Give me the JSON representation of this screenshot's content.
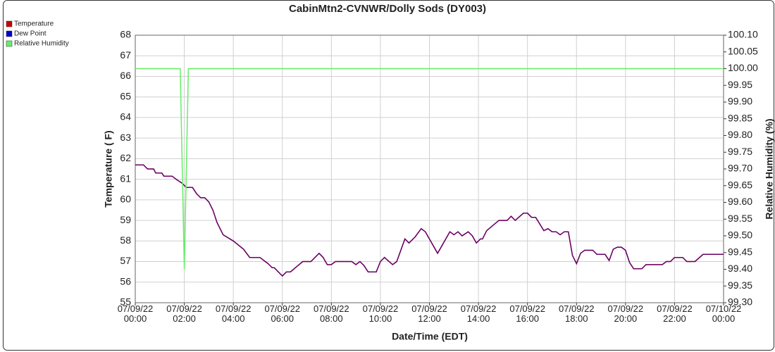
{
  "chart_data": {
    "type": "line",
    "title": "CabinMtn2-CVNWR/Dolly Sods (DY003)",
    "x_label": "Date/Time (EDT)",
    "y_label": "Temperature ( F)",
    "y2_label": "Relative Humidity (%)",
    "grid": true,
    "legend": "top-left",
    "xlim": [
      "2022-07-09T00:00",
      "2022-07-10T00:00"
    ],
    "xticks": [
      {
        "value": "2022-07-09T00:00",
        "label": "07/09/22 00:00"
      },
      {
        "value": "2022-07-09T02:00",
        "label": "07/09/22 02:00"
      },
      {
        "value": "2022-07-09T04:00",
        "label": "07/09/22 04:00"
      },
      {
        "value": "2022-07-09T06:00",
        "label": "07/09/22 06:00"
      },
      {
        "value": "2022-07-09T08:00",
        "label": "07/09/22 08:00"
      },
      {
        "value": "2022-07-09T10:00",
        "label": "07/09/22 10:00"
      },
      {
        "value": "2022-07-09T12:00",
        "label": "07/09/22 12:00"
      },
      {
        "value": "2022-07-09T14:00",
        "label": "07/09/22 14:00"
      },
      {
        "value": "2022-07-09T16:00",
        "label": "07/09/22 16:00"
      },
      {
        "value": "2022-07-09T18:00",
        "label": "07/09/22 18:00"
      },
      {
        "value": "2022-07-09T20:00",
        "label": "07/09/22 20:00"
      },
      {
        "value": "2022-07-09T22:00",
        "label": "07/09/22 22:00"
      },
      {
        "value": "2022-07-10T00:00",
        "label": "07/10/22 00:00"
      }
    ],
    "ylim": [
      55,
      68
    ],
    "yticks": [
      55,
      56,
      57,
      58,
      59,
      60,
      61,
      62,
      63,
      64,
      65,
      66,
      67,
      68
    ],
    "y2lim": [
      99.3,
      100.1
    ],
    "y2ticks": [
      {
        "value": 99.3,
        "label": "99.30"
      },
      99.35,
      {
        "value": 99.4,
        "label": "99.40"
      },
      99.45,
      {
        "value": 99.5,
        "label": "99.50"
      },
      99.55,
      {
        "value": 99.6,
        "label": "99.60"
      },
      99.65,
      {
        "value": 99.7,
        "label": "99.70"
      },
      99.75,
      {
        "value": 99.8,
        "label": "99.80"
      },
      99.85,
      {
        "value": 99.9,
        "label": "99.90"
      },
      99.95,
      {
        "value": 100,
        "label": "100.00"
      },
      100.05,
      {
        "value": 100.1,
        "label": "100.10"
      }
    ],
    "x": [
      "2022-07-09T00:00",
      "2022-07-09T00:20",
      "2022-07-09T00:30",
      "2022-07-09T00:45",
      "2022-07-09T00:50",
      "2022-07-09T01:05",
      "2022-07-09T01:10",
      "2022-07-09T01:30",
      "2022-07-09T01:40",
      "2022-07-09T01:55",
      "2022-07-09T02:05",
      "2022-07-09T02:20",
      "2022-07-09T02:30",
      "2022-07-09T02:40",
      "2022-07-09T02:50",
      "2022-07-09T03:00",
      "2022-07-09T03:10",
      "2022-07-09T03:20",
      "2022-07-09T03:35",
      "2022-07-09T04:00",
      "2022-07-09T04:25",
      "2022-07-09T04:40",
      "2022-07-09T05:05",
      "2022-07-09T05:25",
      "2022-07-09T05:35",
      "2022-07-09T05:40",
      "2022-07-09T06:00",
      "2022-07-09T06:10",
      "2022-07-09T06:20",
      "2022-07-09T06:35",
      "2022-07-09T06:50",
      "2022-07-09T07:10",
      "2022-07-09T07:30",
      "2022-07-09T07:40",
      "2022-07-09T07:50",
      "2022-07-09T08:00",
      "2022-07-09T08:10",
      "2022-07-09T08:50",
      "2022-07-09T09:00",
      "2022-07-09T09:10",
      "2022-07-09T09:20",
      "2022-07-09T09:30",
      "2022-07-09T09:50",
      "2022-07-09T10:00",
      "2022-07-09T10:10",
      "2022-07-09T10:30",
      "2022-07-09T10:40",
      "2022-07-09T11:00",
      "2022-07-09T11:10",
      "2022-07-09T11:25",
      "2022-07-09T11:40",
      "2022-07-09T11:50",
      "2022-07-09T12:20",
      "2022-07-09T12:50",
      "2022-07-09T13:00",
      "2022-07-09T13:10",
      "2022-07-09T13:20",
      "2022-07-09T13:35",
      "2022-07-09T13:45",
      "2022-07-09T13:55",
      "2022-07-09T14:05",
      "2022-07-09T14:10",
      "2022-07-09T14:20",
      "2022-07-09T14:50",
      "2022-07-09T15:10",
      "2022-07-09T15:20",
      "2022-07-09T15:30",
      "2022-07-09T15:50",
      "2022-07-09T16:00",
      "2022-07-09T16:10",
      "2022-07-09T16:20",
      "2022-07-09T16:40",
      "2022-07-09T16:50",
      "2022-07-09T17:00",
      "2022-07-09T17:10",
      "2022-07-09T17:20",
      "2022-07-09T17:30",
      "2022-07-09T17:40",
      "2022-07-09T17:50",
      "2022-07-09T18:00",
      "2022-07-09T18:10",
      "2022-07-09T18:20",
      "2022-07-09T18:40",
      "2022-07-09T18:50",
      "2022-07-09T19:10",
      "2022-07-09T19:20",
      "2022-07-09T19:30",
      "2022-07-09T19:40",
      "2022-07-09T19:50",
      "2022-07-09T20:00",
      "2022-07-09T20:10",
      "2022-07-09T20:20",
      "2022-07-09T20:40",
      "2022-07-09T20:50",
      "2022-07-09T21:30",
      "2022-07-09T21:40",
      "2022-07-09T21:50",
      "2022-07-09T22:00",
      "2022-07-09T22:20",
      "2022-07-09T22:30",
      "2022-07-09T22:50",
      "2022-07-09T23:10",
      "2022-07-10T00:00"
    ],
    "series": [
      {
        "name": "Temperature",
        "color": "#cc0000",
        "values": [
          61.7,
          61.7,
          61.5,
          61.5,
          61.3,
          61.3,
          61.15,
          61.15,
          61.0,
          60.8,
          60.6,
          60.6,
          60.3,
          60.1,
          60.1,
          59.9,
          59.5,
          58.9,
          58.3,
          58.0,
          57.6,
          57.2,
          57.2,
          56.9,
          56.7,
          56.7,
          56.3,
          56.5,
          56.5,
          56.75,
          57.0,
          57.0,
          57.4,
          57.2,
          56.85,
          56.85,
          57.0,
          57.0,
          56.85,
          57.0,
          56.8,
          56.5,
          56.5,
          57.0,
          57.2,
          56.85,
          57.0,
          58.1,
          57.9,
          58.2,
          58.6,
          58.45,
          57.4,
          58.45,
          58.3,
          58.45,
          58.25,
          58.45,
          58.25,
          57.9,
          58.1,
          58.1,
          58.5,
          59.0,
          59.0,
          59.2,
          59.0,
          59.35,
          59.35,
          59.15,
          59.15,
          58.5,
          58.6,
          58.45,
          58.45,
          58.3,
          58.45,
          58.45,
          57.3,
          56.9,
          57.4,
          57.55,
          57.55,
          57.35,
          57.35,
          57.05,
          57.6,
          57.7,
          57.7,
          57.55,
          56.95,
          56.65,
          56.65,
          56.85,
          56.85,
          57.0,
          57.0,
          57.2,
          57.2,
          57.0,
          57.0,
          57.35,
          57.35
        ]
      },
      {
        "name": "Dew Point",
        "color": "#0000cc",
        "values": [
          61.7,
          61.7,
          61.5,
          61.5,
          61.3,
          61.3,
          61.15,
          61.15,
          61.0,
          60.8,
          60.6,
          60.6,
          60.3,
          60.1,
          60.1,
          59.9,
          59.5,
          58.9,
          58.3,
          58.0,
          57.6,
          57.2,
          57.2,
          56.9,
          56.7,
          56.7,
          56.3,
          56.5,
          56.5,
          56.75,
          57.0,
          57.0,
          57.4,
          57.2,
          56.85,
          56.85,
          57.0,
          57.0,
          56.85,
          57.0,
          56.8,
          56.5,
          56.5,
          57.0,
          57.2,
          56.85,
          57.0,
          58.1,
          57.9,
          58.2,
          58.6,
          58.45,
          57.4,
          58.45,
          58.3,
          58.45,
          58.25,
          58.45,
          58.25,
          57.9,
          58.1,
          58.1,
          58.5,
          59.0,
          59.0,
          59.2,
          59.0,
          59.35,
          59.35,
          59.15,
          59.15,
          58.5,
          58.6,
          58.45,
          58.45,
          58.3,
          58.45,
          58.45,
          57.3,
          56.9,
          57.4,
          57.55,
          57.55,
          57.35,
          57.35,
          57.05,
          57.6,
          57.7,
          57.7,
          57.55,
          56.95,
          56.65,
          56.65,
          56.85,
          56.85,
          57.0,
          57.0,
          57.2,
          57.2,
          57.0,
          57.0,
          57.35,
          57.35
        ]
      },
      {
        "name": "Relative Humidity",
        "color": "#66ee66",
        "axis": "y2",
        "x": [
          "2022-07-09T00:00",
          "2022-07-09T01:50",
          "2022-07-09T02:00",
          "2022-07-09T02:10",
          "2022-07-10T00:00"
        ],
        "values": [
          100,
          100,
          99.4,
          100,
          100
        ]
      }
    ]
  }
}
